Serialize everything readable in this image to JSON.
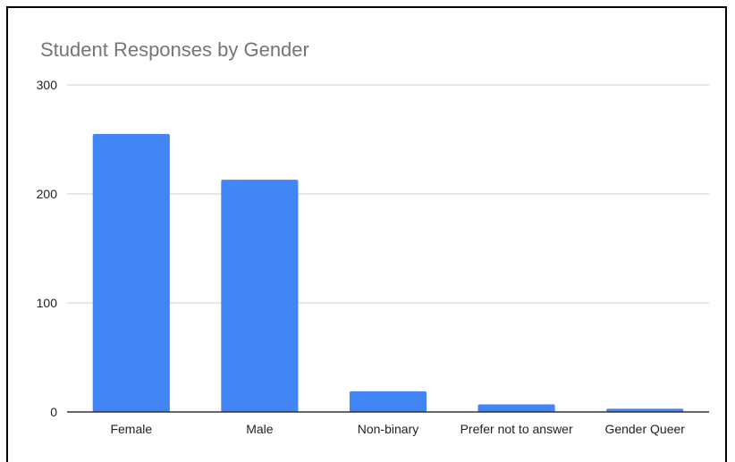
{
  "chart_data": {
    "type": "bar",
    "title": "Student Responses by Gender",
    "xlabel": "",
    "ylabel": "",
    "categories": [
      "Female",
      "Male",
      "Non-binary",
      "Prefer not to answer",
      "Gender Queer"
    ],
    "values": [
      255,
      213,
      19,
      7,
      3
    ],
    "ylim": [
      0,
      300
    ],
    "yticks": [
      "0",
      "100",
      "200",
      "300"
    ],
    "grid": true,
    "legend": "none",
    "bar_color": "#4285f4",
    "grid_color": "#cccccc",
    "axis_color": "#333333"
  }
}
